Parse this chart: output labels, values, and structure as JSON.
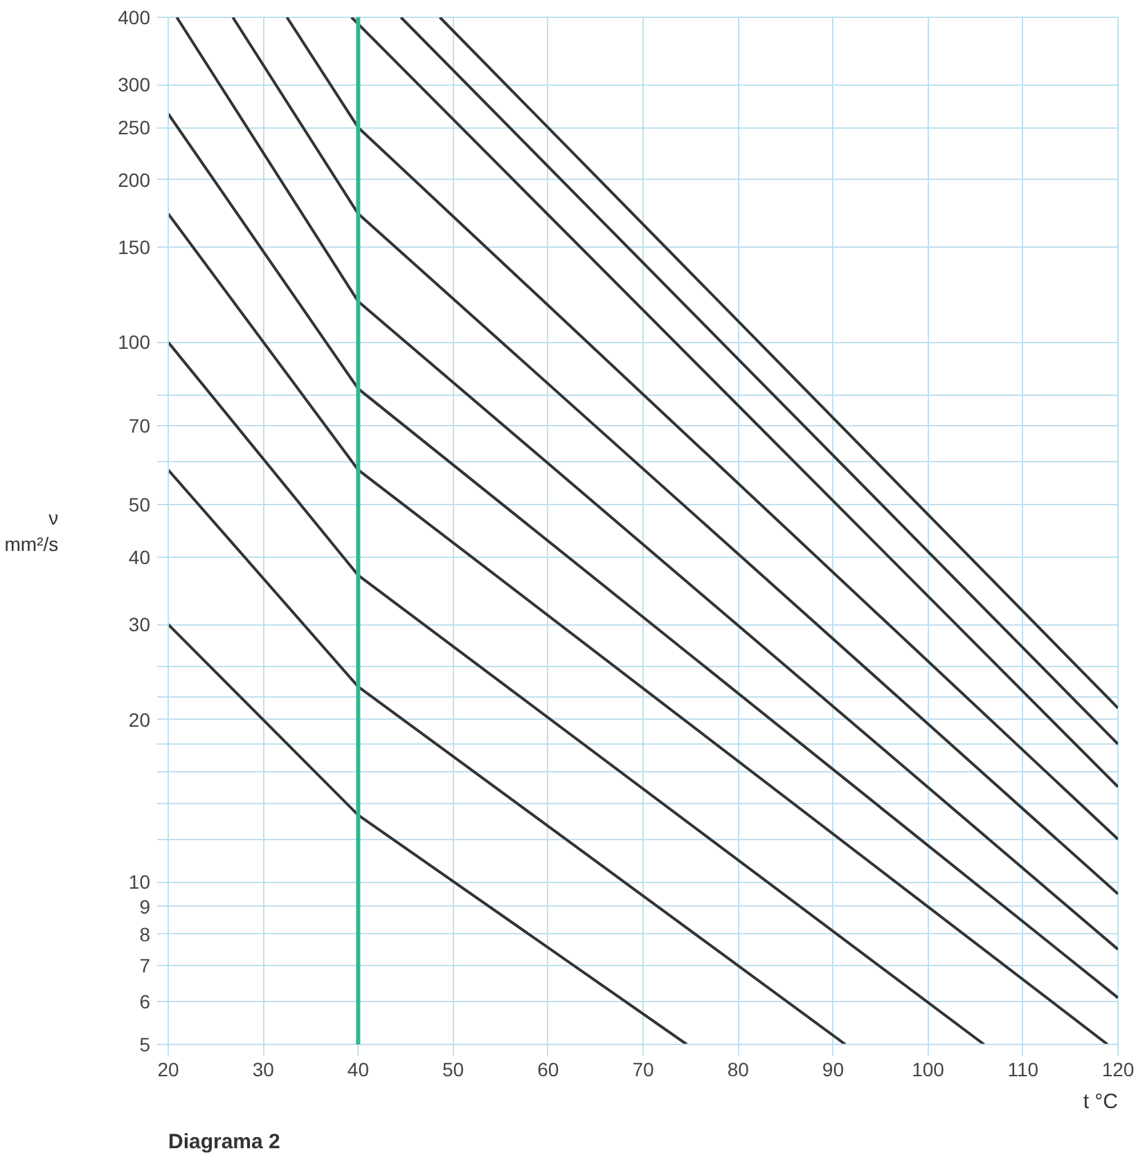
{
  "chart_data": {
    "type": "line",
    "xlabel": "t °C",
    "ylabel": "ν mm²/s",
    "annotations": [
      "Diagrama 2"
    ],
    "log": "y",
    "xlim": [
      20,
      120
    ],
    "xticks": [
      20,
      30,
      40,
      50,
      60,
      70,
      80,
      90,
      100,
      110,
      120
    ],
    "ylim": [
      5,
      400
    ],
    "yticks": [
      5,
      6,
      7,
      8,
      9,
      10,
      {
        "value": 12,
        "label": null
      },
      {
        "value": 14,
        "label": null
      },
      {
        "value": 16,
        "label": null
      },
      {
        "value": 18,
        "label": null
      },
      20,
      {
        "value": 22,
        "label": null
      },
      {
        "value": 25,
        "label": null
      },
      30,
      40,
      50,
      {
        "value": 60,
        "label": null
      },
      70,
      {
        "value": 80,
        "label": null
      },
      100,
      150,
      200,
      250,
      300,
      400
    ],
    "grid": true,
    "marker": "none",
    "line_style": "solid",
    "series": [
      {
        "color": "#333333",
        "x": [
          20,
          40,
          74.6
        ],
        "values": [
          30,
          13.3,
          5
        ]
      },
      {
        "color": "#333333",
        "x": [
          20,
          40,
          91.3
        ],
        "values": [
          58,
          23,
          5
        ]
      },
      {
        "color": "#333333",
        "x": [
          20,
          40,
          105.9
        ],
        "values": [
          100,
          37,
          5
        ]
      },
      {
        "color": "#333333",
        "x": [
          20,
          40,
          118.9
        ],
        "values": [
          173,
          58,
          5
        ]
      },
      {
        "color": "#333333",
        "x": [
          20,
          40,
          120
        ],
        "values": [
          265,
          82,
          6.1
        ]
      },
      {
        "color": "#333333",
        "x": [
          20.9,
          40,
          120
        ],
        "values": [
          400,
          119,
          7.5
        ]
      },
      {
        "color": "#333333",
        "x": [
          26.8,
          40,
          120
        ],
        "values": [
          400,
          173,
          9.5
        ]
      },
      {
        "color": "#333333",
        "x": [
          32.5,
          40,
          120
        ],
        "values": [
          400,
          250,
          12
        ]
      },
      {
        "color": "#333333",
        "x": [
          39.3,
          120
        ],
        "values": [
          400,
          15
        ]
      },
      {
        "color": "#333333",
        "x": [
          44.5,
          120
        ],
        "values": [
          400,
          18
        ]
      },
      {
        "color": "#333333",
        "x": [
          48.6,
          120
        ],
        "values": [
          400,
          21
        ]
      }
    ],
    "ref_lines": [
      {
        "axis": "x",
        "value": 40,
        "color": "#2db894"
      }
    ]
  }
}
